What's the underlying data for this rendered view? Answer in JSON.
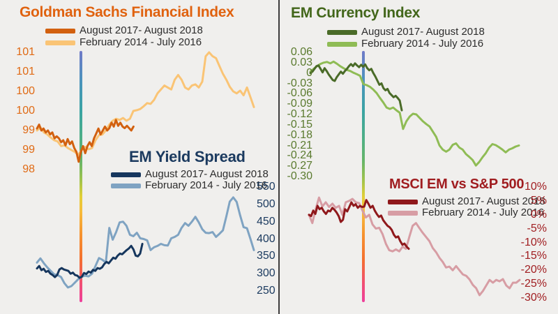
{
  "page": {
    "background_color": "#F0EFED",
    "divider_color": "#3C3C3C"
  },
  "vertical_markers": {
    "description": "rainbow gradient vertical reference line on each half",
    "gradient": [
      "#707AC8",
      "#4B93BC",
      "#3AA4A3",
      "#4FAF85",
      "#67B568",
      "#A5C44A",
      "#E2CF37",
      "#F7BC3C",
      "#F6932F",
      "#F4702F",
      "#F15070",
      "#EE3F9C"
    ]
  },
  "chart_data": [
    {
      "type": "line",
      "title": "Goldman Sachs Financial Index",
      "title_color": "#E0620F",
      "axis_color": "#E06A14",
      "axis_side": "left",
      "legend_position": "top",
      "grid": false,
      "ylim": [
        98,
        101
      ],
      "ytick_labels": [
        "101",
        "101",
        "100",
        "100",
        "99",
        "99",
        "98"
      ],
      "series": [
        {
          "name": "August 2017- August 2018",
          "color": "#D2600F",
          "x_start": 0,
          "x_end": 0.445,
          "values": [
            99.05,
            99.15,
            99.0,
            99.05,
            98.95,
            99.0,
            98.9,
            98.95,
            98.8,
            98.85,
            98.8,
            98.7,
            98.75,
            98.62,
            98.78,
            98.65,
            98.72,
            98.55,
            98.45,
            98.2,
            98.45,
            98.6,
            98.42,
            98.6,
            98.7,
            98.6,
            98.8,
            98.92,
            99.05,
            98.9,
            99.0,
            99.1,
            99.0,
            99.06,
            99.2,
            99.1,
            99.27,
            99.12,
            99.2,
            99.1,
            99.06,
            99.12,
            99.06,
            99.0,
            99.1
          ]
        },
        {
          "name": "February 2014 - July 2016",
          "color": "#FAC475",
          "x_start": 0,
          "x_end": 1,
          "values": [
            99.0,
            99.08,
            98.95,
            98.9,
            98.82,
            98.75,
            98.72,
            98.6,
            98.62,
            98.55,
            98.5,
            98.45,
            98.38,
            98.5,
            98.58,
            98.52,
            98.55,
            98.75,
            98.88,
            98.9,
            99.0,
            99.15,
            99.25,
            99.3,
            99.27,
            99.32,
            99.25,
            99.3,
            99.5,
            99.52,
            99.55,
            99.62,
            99.7,
            99.68,
            99.78,
            99.95,
            100.05,
            100.15,
            100.1,
            100.05,
            100.3,
            100.42,
            100.3,
            100.1,
            100.05,
            100.15,
            100.18,
            100.1,
            100.25,
            100.9,
            101.0,
            100.9,
            100.85,
            100.65,
            100.45,
            100.3,
            100.12,
            100.0,
            99.95,
            100.02,
            99.9,
            100.1,
            99.85,
            99.6
          ]
        }
      ]
    },
    {
      "type": "line",
      "title": "EM Currency Index",
      "title_color": "#42661A",
      "axis_color": "#5A7A2E",
      "axis_side": "left",
      "legend_position": "top",
      "grid": false,
      "ylim": [
        -0.3,
        0.06
      ],
      "ytick_labels": [
        "0.06",
        "0.03",
        "0",
        "-0.03",
        "-0.06",
        "-0.09",
        "-0.12",
        "-0.15",
        "-0.18",
        "-0.21",
        "-0.24",
        "-0.27",
        "-0.30"
      ],
      "series": [
        {
          "name": "August 2017- August 2018",
          "color": "#4A6B28",
          "x_start": 0,
          "x_end": 0.438,
          "values": [
            0.0,
            0.004,
            0.012,
            0.02,
            0.022,
            0.012,
            0.002,
            0.014,
            0.006,
            -0.004,
            -0.012,
            -0.02,
            -0.023,
            -0.012,
            -0.004,
            0.004,
            -0.002,
            0.006,
            0.012,
            0.02,
            0.026,
            0.02,
            0.028,
            0.022,
            0.017,
            0.024,
            0.018,
            0.025,
            0.014,
            0.008,
            0.012,
            0.0,
            -0.01,
            -0.022,
            -0.034,
            -0.03,
            -0.044,
            -0.05,
            -0.046,
            -0.058,
            -0.064,
            -0.07,
            -0.066,
            -0.072,
            -0.08,
            -0.108
          ]
        },
        {
          "name": "February 2014 - July 2016",
          "color": "#8FBC55",
          "x_start": 0,
          "x_end": 1,
          "values": [
            0.004,
            0.012,
            0.02,
            0.026,
            0.03,
            0.032,
            0.028,
            0.033,
            0.027,
            0.02,
            0.014,
            0.009,
            0.006,
            0.001,
            -0.003,
            -0.008,
            -0.032,
            -0.035,
            -0.04,
            -0.048,
            -0.058,
            -0.072,
            -0.085,
            -0.1,
            -0.104,
            -0.1,
            -0.108,
            -0.115,
            -0.162,
            -0.14,
            -0.126,
            -0.118,
            -0.12,
            -0.13,
            -0.14,
            -0.148,
            -0.155,
            -0.17,
            -0.185,
            -0.21,
            -0.222,
            -0.228,
            -0.222,
            -0.208,
            -0.204,
            -0.216,
            -0.222,
            -0.235,
            -0.243,
            -0.252,
            -0.268,
            -0.258,
            -0.244,
            -0.232,
            -0.216,
            -0.206,
            -0.209,
            -0.215,
            -0.222,
            -0.23,
            -0.222,
            -0.218,
            -0.213,
            -0.21
          ]
        }
      ]
    },
    {
      "type": "line",
      "title": "EM Yield Spread",
      "title_color": "#1B3A5F",
      "axis_color": "#1B3A5F",
      "axis_side": "right",
      "legend_position": "top",
      "grid": false,
      "ylim": [
        250,
        550
      ],
      "ytick_labels": [
        "550",
        "500",
        "450",
        "400",
        "350",
        "300",
        "250"
      ],
      "series": [
        {
          "name": "August 2017- August 2018",
          "color": "#16365D",
          "x_start": 0,
          "x_end": 0.486,
          "values": [
            315,
            322,
            310,
            314,
            305,
            308,
            300,
            296,
            290,
            296,
            312,
            316,
            312,
            310,
            308,
            300,
            303,
            296,
            294,
            288,
            291,
            302,
            299,
            306,
            303,
            311,
            308,
            316,
            314,
            318,
            328,
            334,
            330,
            338,
            346,
            343,
            352,
            358,
            356,
            362,
            368,
            373,
            380,
            370,
            352,
            350,
            358,
            386
          ]
        },
        {
          "name": "February 2014 - July 2016",
          "color": "#7FA3C2",
          "x_start": 0,
          "x_end": 1,
          "values": [
            332,
            344,
            330,
            318,
            308,
            298,
            296,
            290,
            272,
            260,
            264,
            274,
            284,
            291,
            294,
            292,
            300,
            322,
            345,
            340,
            332,
            432,
            398,
            420,
            448,
            450,
            438,
            412,
            408,
            418,
            402,
            400,
            396,
            368,
            376,
            380,
            386,
            382,
            381,
            402,
            406,
            412,
            432,
            446,
            438,
            450,
            464,
            448,
            428,
            418,
            417,
            420,
            406,
            415,
            425,
            465,
            508,
            520,
            507,
            468,
            434,
            431,
            400,
            368
          ]
        }
      ]
    },
    {
      "type": "line",
      "title": "MSCI EM vs S&P 500",
      "title_color": "#A01D20",
      "axis_color": "#A01D20",
      "axis_side": "right",
      "legend_position": "top",
      "grid": false,
      "ylim": [
        -30,
        10
      ],
      "ytick_labels": [
        "10%",
        "5%",
        "0%",
        "-5%",
        "-10%",
        "-15%",
        "-20%",
        "-25%",
        "-30%"
      ],
      "series": [
        {
          "name": "August 2017- August 2018",
          "color": "#8F181B",
          "x_start": 0,
          "x_end": 0.4735,
          "values": [
            0,
            -0.5,
            1.5,
            0.3,
            3.2,
            2.0,
            2.5,
            1.2,
            0.3,
            1.5,
            1.2,
            2.5,
            1.8,
            0.8,
            -0.5,
            -2.6,
            -1.8,
            2.0,
            1.2,
            2.8,
            4.5,
            3.2,
            3.8,
            2.5,
            3.2,
            2.8,
            2.9,
            5.3,
            4.0,
            2.5,
            3.2,
            1.5,
            0.2,
            -0.8,
            -0.3,
            -2.0,
            -3.0,
            -4.0,
            -4.5,
            -5.5,
            -7.2,
            -8.2,
            -7.8,
            -9.5,
            -10.8,
            -10.4,
            -11.5,
            -12.3
          ]
        },
        {
          "name": "February 2014 - July 2016",
          "color": "#D79DA4",
          "x_start": 0,
          "x_end": 1,
          "values": [
            0,
            -3.0,
            2.0,
            6.2,
            3.0,
            4.5,
            2.8,
            4.0,
            2.5,
            3.2,
            0.0,
            4.5,
            5.0,
            5.7,
            4.5,
            4.2,
            1.5,
            -1.0,
            0.0,
            -3.5,
            -5.0,
            -4.7,
            -7.0,
            -10.5,
            -12.8,
            -13.2,
            -12.5,
            -13.2,
            -11.5,
            -12.3,
            -8.0,
            -4.0,
            -3.0,
            -4.8,
            -6.5,
            -8.0,
            -9.5,
            -12.0,
            -13.5,
            -15.5,
            -17.0,
            -19.0,
            -18.7,
            -20.0,
            -18.5,
            -20.0,
            -21.5,
            -22.0,
            -23.3,
            -25.3,
            -26.5,
            -29.0,
            -27.5,
            -25.5,
            -23.5,
            -24.5,
            -23.5,
            -24.0,
            -23.2,
            -25.5,
            -26.5,
            -24.5,
            -24.5,
            -23.5
          ]
        }
      ]
    }
  ]
}
